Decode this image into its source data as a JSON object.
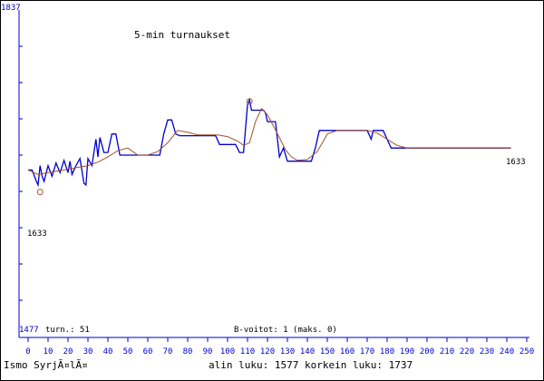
{
  "chart_data": {
    "type": "line",
    "title": "5-min turnaukset",
    "y_max_label": "1837",
    "y_min_label": "1477",
    "ylim": [
      1477,
      1837
    ],
    "xlim": [
      -2,
      250
    ],
    "x_ticks": [
      0,
      10,
      20,
      30,
      40,
      50,
      60,
      70,
      80,
      90,
      100,
      110,
      120,
      130,
      140,
      150,
      160,
      170,
      180,
      190,
      200,
      210,
      220,
      230,
      240,
      250
    ],
    "grid": false,
    "turns_label": "turn.: 51",
    "bvoitot_label": "B-voitot: 1 (maks. 0)",
    "start_marker_label": "1633",
    "end_label": "1633",
    "start_marker": {
      "x": 6,
      "y": 1630
    },
    "peak_marker": {
      "x": 111,
      "y": 1733
    },
    "colors": {
      "rating": "#0000cc",
      "average": "#a0522d",
      "axis": "#0000cc",
      "frame": "#000000",
      "marker": "#a0522d"
    },
    "series": [
      {
        "x": [
          0,
          2,
          4,
          5,
          6,
          7,
          8,
          10,
          12,
          14,
          16,
          18,
          20,
          21,
          22,
          24,
          26,
          28,
          29,
          30,
          32,
          34,
          35,
          36,
          38,
          40,
          42,
          44,
          46,
          48,
          50,
          52,
          54,
          56,
          58,
          60,
          62,
          64,
          66,
          68,
          70,
          72,
          74,
          76,
          78,
          80,
          82,
          84,
          86,
          88,
          90,
          92,
          94,
          96,
          98,
          100,
          102,
          104,
          106,
          108,
          110,
          111,
          112,
          114,
          116,
          118,
          119,
          120,
          122,
          124,
          126,
          128,
          130,
          132,
          134,
          136,
          138,
          140,
          142,
          144,
          146,
          148,
          150,
          152,
          156,
          160,
          164,
          168,
          170,
          172,
          173,
          174,
          176,
          178,
          180,
          182,
          184,
          186,
          188,
          190,
          200,
          210,
          220,
          230,
          240,
          242
        ],
        "values": [
          1655,
          1655,
          1643,
          1638,
          1660,
          1648,
          1642,
          1660,
          1648,
          1663,
          1652,
          1666,
          1652,
          1665,
          1650,
          1660,
          1668,
          1640,
          1638,
          1668,
          1660,
          1690,
          1670,
          1692,
          1675,
          1675,
          1696,
          1696,
          1672,
          1672,
          1672,
          1672,
          1672,
          1672,
          1672,
          1672,
          1672,
          1672,
          1672,
          1696,
          1712,
          1712,
          1696,
          1694,
          1694,
          1694,
          1694,
          1694,
          1694,
          1694,
          1694,
          1694,
          1694,
          1684,
          1684,
          1684,
          1684,
          1684,
          1675,
          1675,
          1729,
          1735,
          1723,
          1723,
          1723,
          1723,
          1720,
          1710,
          1710,
          1710,
          1670,
          1680,
          1665,
          1665,
          1665,
          1665,
          1665,
          1665,
          1665,
          1680,
          1700,
          1700,
          1700,
          1700,
          1700,
          1700,
          1700,
          1700,
          1700,
          1690,
          1700,
          1700,
          1700,
          1700,
          1690,
          1680,
          1680,
          1680,
          1680,
          1680,
          1680,
          1680,
          1680,
          1680,
          1680,
          1680
        ]
      },
      {
        "x": [
          0,
          5,
          10,
          15,
          20,
          25,
          30,
          35,
          40,
          45,
          50,
          55,
          60,
          65,
          70,
          75,
          80,
          85,
          90,
          95,
          100,
          105,
          108,
          111,
          114,
          117,
          120,
          123,
          126,
          129,
          132,
          135,
          140,
          145,
          150,
          155,
          160,
          165,
          170,
          175,
          180,
          185,
          190,
          200,
          210,
          220,
          230,
          240,
          242
        ],
        "values": [
          1655,
          1650,
          1652,
          1654,
          1656,
          1658,
          1660,
          1664,
          1670,
          1677,
          1680,
          1672,
          1672,
          1676,
          1686,
          1700,
          1698,
          1695,
          1695,
          1695,
          1693,
          1688,
          1683,
          1686,
          1710,
          1725,
          1718,
          1705,
          1692,
          1678,
          1670,
          1666,
          1667,
          1676,
          1696,
          1700,
          1700,
          1700,
          1700,
          1697,
          1690,
          1683,
          1680,
          1680,
          1680,
          1680,
          1680,
          1680,
          1680
        ]
      }
    ]
  },
  "footer": {
    "player": "Ismo SyrjÃ¤lÃ¤",
    "summary": "alin luku: 1577  korkein luku: 1737"
  }
}
